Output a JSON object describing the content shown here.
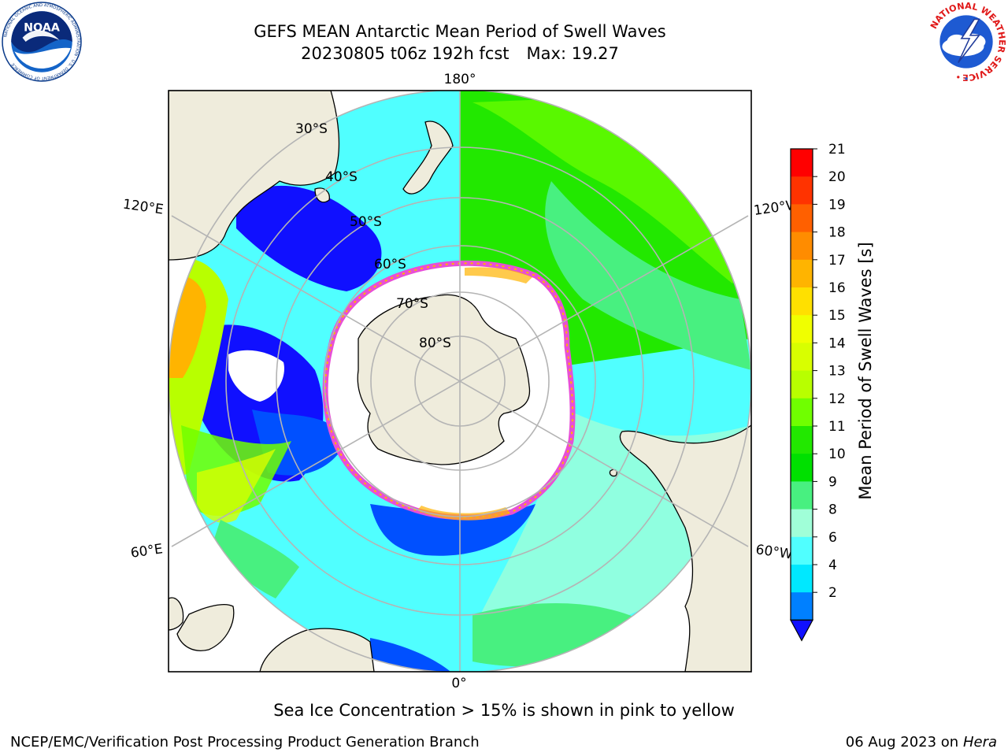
{
  "header": {
    "title_line1": "GEFS MEAN Antarctic Mean Period of Swell Waves",
    "title_line2": "20230805 t06z 192h fcst",
    "max_label": "Max: 19.27"
  },
  "logos": {
    "noaa": {
      "text": "NOAA",
      "ring_text": "NATIONAL OCEANIC AND ATMOSPHERIC ADMINISTRATION · U.S. DEPARTMENT OF COMMERCE"
    },
    "nws": {
      "ring_text": "NATIONAL WEATHER SERVICE"
    }
  },
  "map": {
    "projection": "south-polar-stereographic",
    "longitude_labels": {
      "lon_180": "180°",
      "lon_120e": "120°E",
      "lon_120w": "120°W",
      "lon_60e": "60°E",
      "lon_60w": "60°W",
      "lon_0": "0°"
    },
    "latitude_labels": {
      "lat_30s": "30°S",
      "lat_40s": "40°S",
      "lat_50s": "50°S",
      "lat_60s": "60°S",
      "lat_70s": "70°S",
      "lat_80s": "80°S"
    },
    "colors": {
      "land": "#efecdc",
      "sea_ice": "#ffffff",
      "ice_edge": "#e84fd6",
      "gridline": "#b4b4b4"
    }
  },
  "colorbar": {
    "label": "Mean Period of Swell Waves [s]",
    "ticks": [
      "21",
      "20",
      "19",
      "18",
      "17",
      "16",
      "15",
      "14",
      "13",
      "12",
      "11",
      "10",
      "9",
      "8",
      "6",
      "4",
      "2"
    ],
    "colors": [
      "#ff0000",
      "#ff3300",
      "#ff6000",
      "#ff8c00",
      "#ffb400",
      "#ffe000",
      "#f0ff00",
      "#d8ff00",
      "#b8ff00",
      "#70ff00",
      "#22e800",
      "#00e000",
      "#48f080",
      "#a0ffd8",
      "#50ffff",
      "#00e8ff",
      "#0080ff"
    ],
    "extend_color": "#1010ff"
  },
  "footer": {
    "note": "Sea Ice Concentration > 15% is shown in pink to yellow",
    "branch": "NCEP/EMC/Verification Post Processing Product Generation Branch",
    "date": "06 Aug 2023 on",
    "host": "Hera"
  }
}
